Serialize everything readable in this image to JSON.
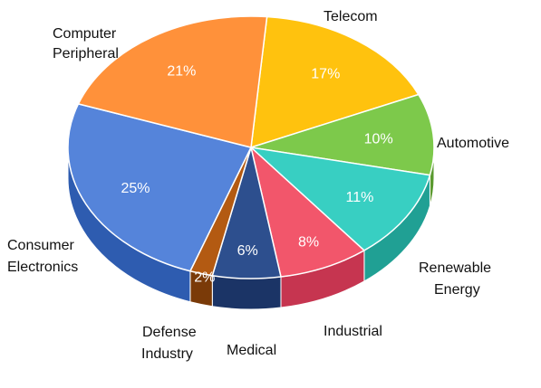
{
  "chart_data": {
    "type": "pie",
    "style": "3d",
    "legend": "none",
    "slices": [
      {
        "label": "Telecom",
        "value": 17,
        "value_label": "17%",
        "color": "#FFC20E",
        "side": "#C89200"
      },
      {
        "label": "Automotive",
        "value": 10,
        "value_label": "10%",
        "color": "#7DC94B",
        "side": "#5A9A30"
      },
      {
        "label": "Renewable Energy",
        "value": 11,
        "value_label": "11%",
        "color": "#38CFC2",
        "side": "#20A094"
      },
      {
        "label": "Industrial",
        "value": 8,
        "value_label": "8%",
        "color": "#F2566B",
        "side": "#C63550"
      },
      {
        "label": "Medical",
        "value": 6,
        "value_label": "6%",
        "color": "#2D4F8E",
        "side": "#1B3466"
      },
      {
        "label": "Defense Industry",
        "value": 2,
        "value_label": "2%",
        "color": "#B35A12",
        "side": "#7A3A08"
      },
      {
        "label": "Consumer Electronics",
        "value": 25,
        "value_label": "25%",
        "color": "#5584DA",
        "side": "#2E5CB0"
      },
      {
        "label": "Computer Peripheral",
        "value": 21,
        "value_label": "21%",
        "color": "#FF913A",
        "side": "#C96A1F"
      }
    ]
  },
  "labels": {
    "telecom": "Telecom",
    "automotive": "Automotive",
    "renewable_1": "Renewable",
    "renewable_2": "Energy",
    "industrial": "Industrial",
    "medical": "Medical",
    "defense_1": "Defense",
    "defense_2": "Industry",
    "consumer_1": "Consumer",
    "consumer_2": "Electronics",
    "computer_1": "Computer",
    "computer_2": "Peripheral"
  }
}
